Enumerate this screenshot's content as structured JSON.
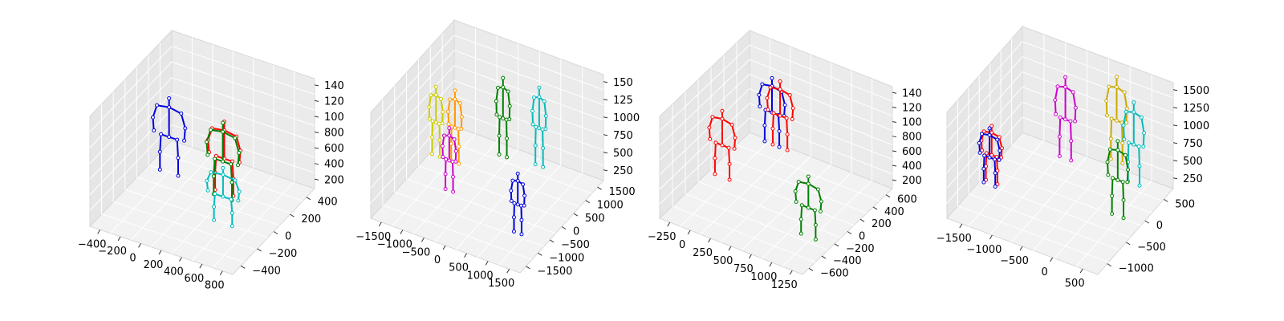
{
  "chart_data": [
    {
      "type": "scatter",
      "x_ticks": [
        "−400",
        "−200",
        "0",
        "200",
        "400",
        "600",
        "800"
      ],
      "y_ticks": [
        "−400",
        "−200",
        "0",
        "200",
        "400"
      ],
      "z_ticks": [
        "200",
        "400",
        "600",
        "800",
        "100",
        "120",
        "140"
      ],
      "skeletons": [
        {
          "color": "#0000dd",
          "x": -220,
          "y": 120,
          "z_min": 150,
          "z_max": 1300
        },
        {
          "color": "#ff0000",
          "x": 360,
          "y": 80,
          "z_min": 200,
          "z_max": 1300
        },
        {
          "color": "#008000",
          "x": 380,
          "y": 40,
          "z_min": 200,
          "z_max": 1350
        },
        {
          "color": "#00bbbb",
          "x": 520,
          "y": -120,
          "z_min": 100,
          "z_max": 950
        }
      ]
    },
    {
      "type": "scatter",
      "x_ticks": [
        "−1500",
        "−1000",
        "−500",
        "0",
        "500",
        "1000",
        "1500"
      ],
      "y_ticks": [
        "−1500",
        "−1000",
        "−500",
        "0",
        "500",
        "1000",
        "1500"
      ],
      "z_ticks": [
        "250",
        "500",
        "750",
        "1000",
        "125",
        "150"
      ],
      "skeletons": [
        {
          "color": "#cccc00",
          "x": -1350,
          "y": 300,
          "z_min": 250,
          "z_max": 1350
        },
        {
          "color": "#ff9900",
          "x": -900,
          "y": 300,
          "z_min": 250,
          "z_max": 1400
        },
        {
          "color": "#cc00cc",
          "x": -700,
          "y": -300,
          "z_min": 100,
          "z_max": 1100
        },
        {
          "color": "#008000",
          "x": -100,
          "y": 900,
          "z_min": 300,
          "z_max": 1550
        },
        {
          "color": "#00bbbb",
          "x": 700,
          "y": 1000,
          "z_min": 300,
          "z_max": 1550
        },
        {
          "color": "#0000dd",
          "x": 1200,
          "y": -800,
          "z_min": 100,
          "z_max": 1050
        }
      ]
    },
    {
      "type": "scatter",
      "x_ticks": [
        "−250",
        "0",
        "250",
        "500",
        "750",
        "1000",
        "1250"
      ],
      "y_ticks": [
        "−600",
        "−400",
        "−200",
        "0",
        "200",
        "400",
        "600"
      ],
      "z_ticks": [
        "200",
        "400",
        "600",
        "800",
        "100",
        "120",
        "140"
      ],
      "skeletons": [
        {
          "color": "#ff0000",
          "x": -150,
          "y": 0,
          "z_min": 100,
          "z_max": 1200
        },
        {
          "color": "#0000dd",
          "x": 150,
          "y": 400,
          "z_min": 400,
          "z_max": 1500
        },
        {
          "color": "#ff0000",
          "x": 250,
          "y": 400,
          "z_min": 400,
          "z_max": 1500
        },
        {
          "color": "#008000",
          "x": 1150,
          "y": -300,
          "z_min": 100,
          "z_max": 1100
        }
      ]
    },
    {
      "type": "scatter",
      "x_ticks": [
        "−1500",
        "−1000",
        "−500",
        "0",
        "500"
      ],
      "y_ticks": [
        "−1000",
        "−500",
        "0",
        "500"
      ],
      "z_ticks": [
        "250",
        "500",
        "750",
        "1000",
        "1250",
        "1500"
      ],
      "skeletons": [
        {
          "color": "#ff0000",
          "x": -1450,
          "y": -400,
          "z_min": 100,
          "z_max": 1000
        },
        {
          "color": "#0000dd",
          "x": -1450,
          "y": -450,
          "z_min": 100,
          "z_max": 1000
        },
        {
          "color": "#cc00cc",
          "x": -700,
          "y": 200,
          "z_min": 300,
          "z_max": 1600
        },
        {
          "color": "#ccaa00",
          "x": -100,
          "y": 500,
          "z_min": 250,
          "z_max": 1600
        },
        {
          "color": "#00bbbb",
          "x": 300,
          "y": 300,
          "z_min": 200,
          "z_max": 1500
        },
        {
          "color": "#008000",
          "x": 350,
          "y": -150,
          "z_min": 50,
          "z_max": 1250
        }
      ]
    }
  ]
}
